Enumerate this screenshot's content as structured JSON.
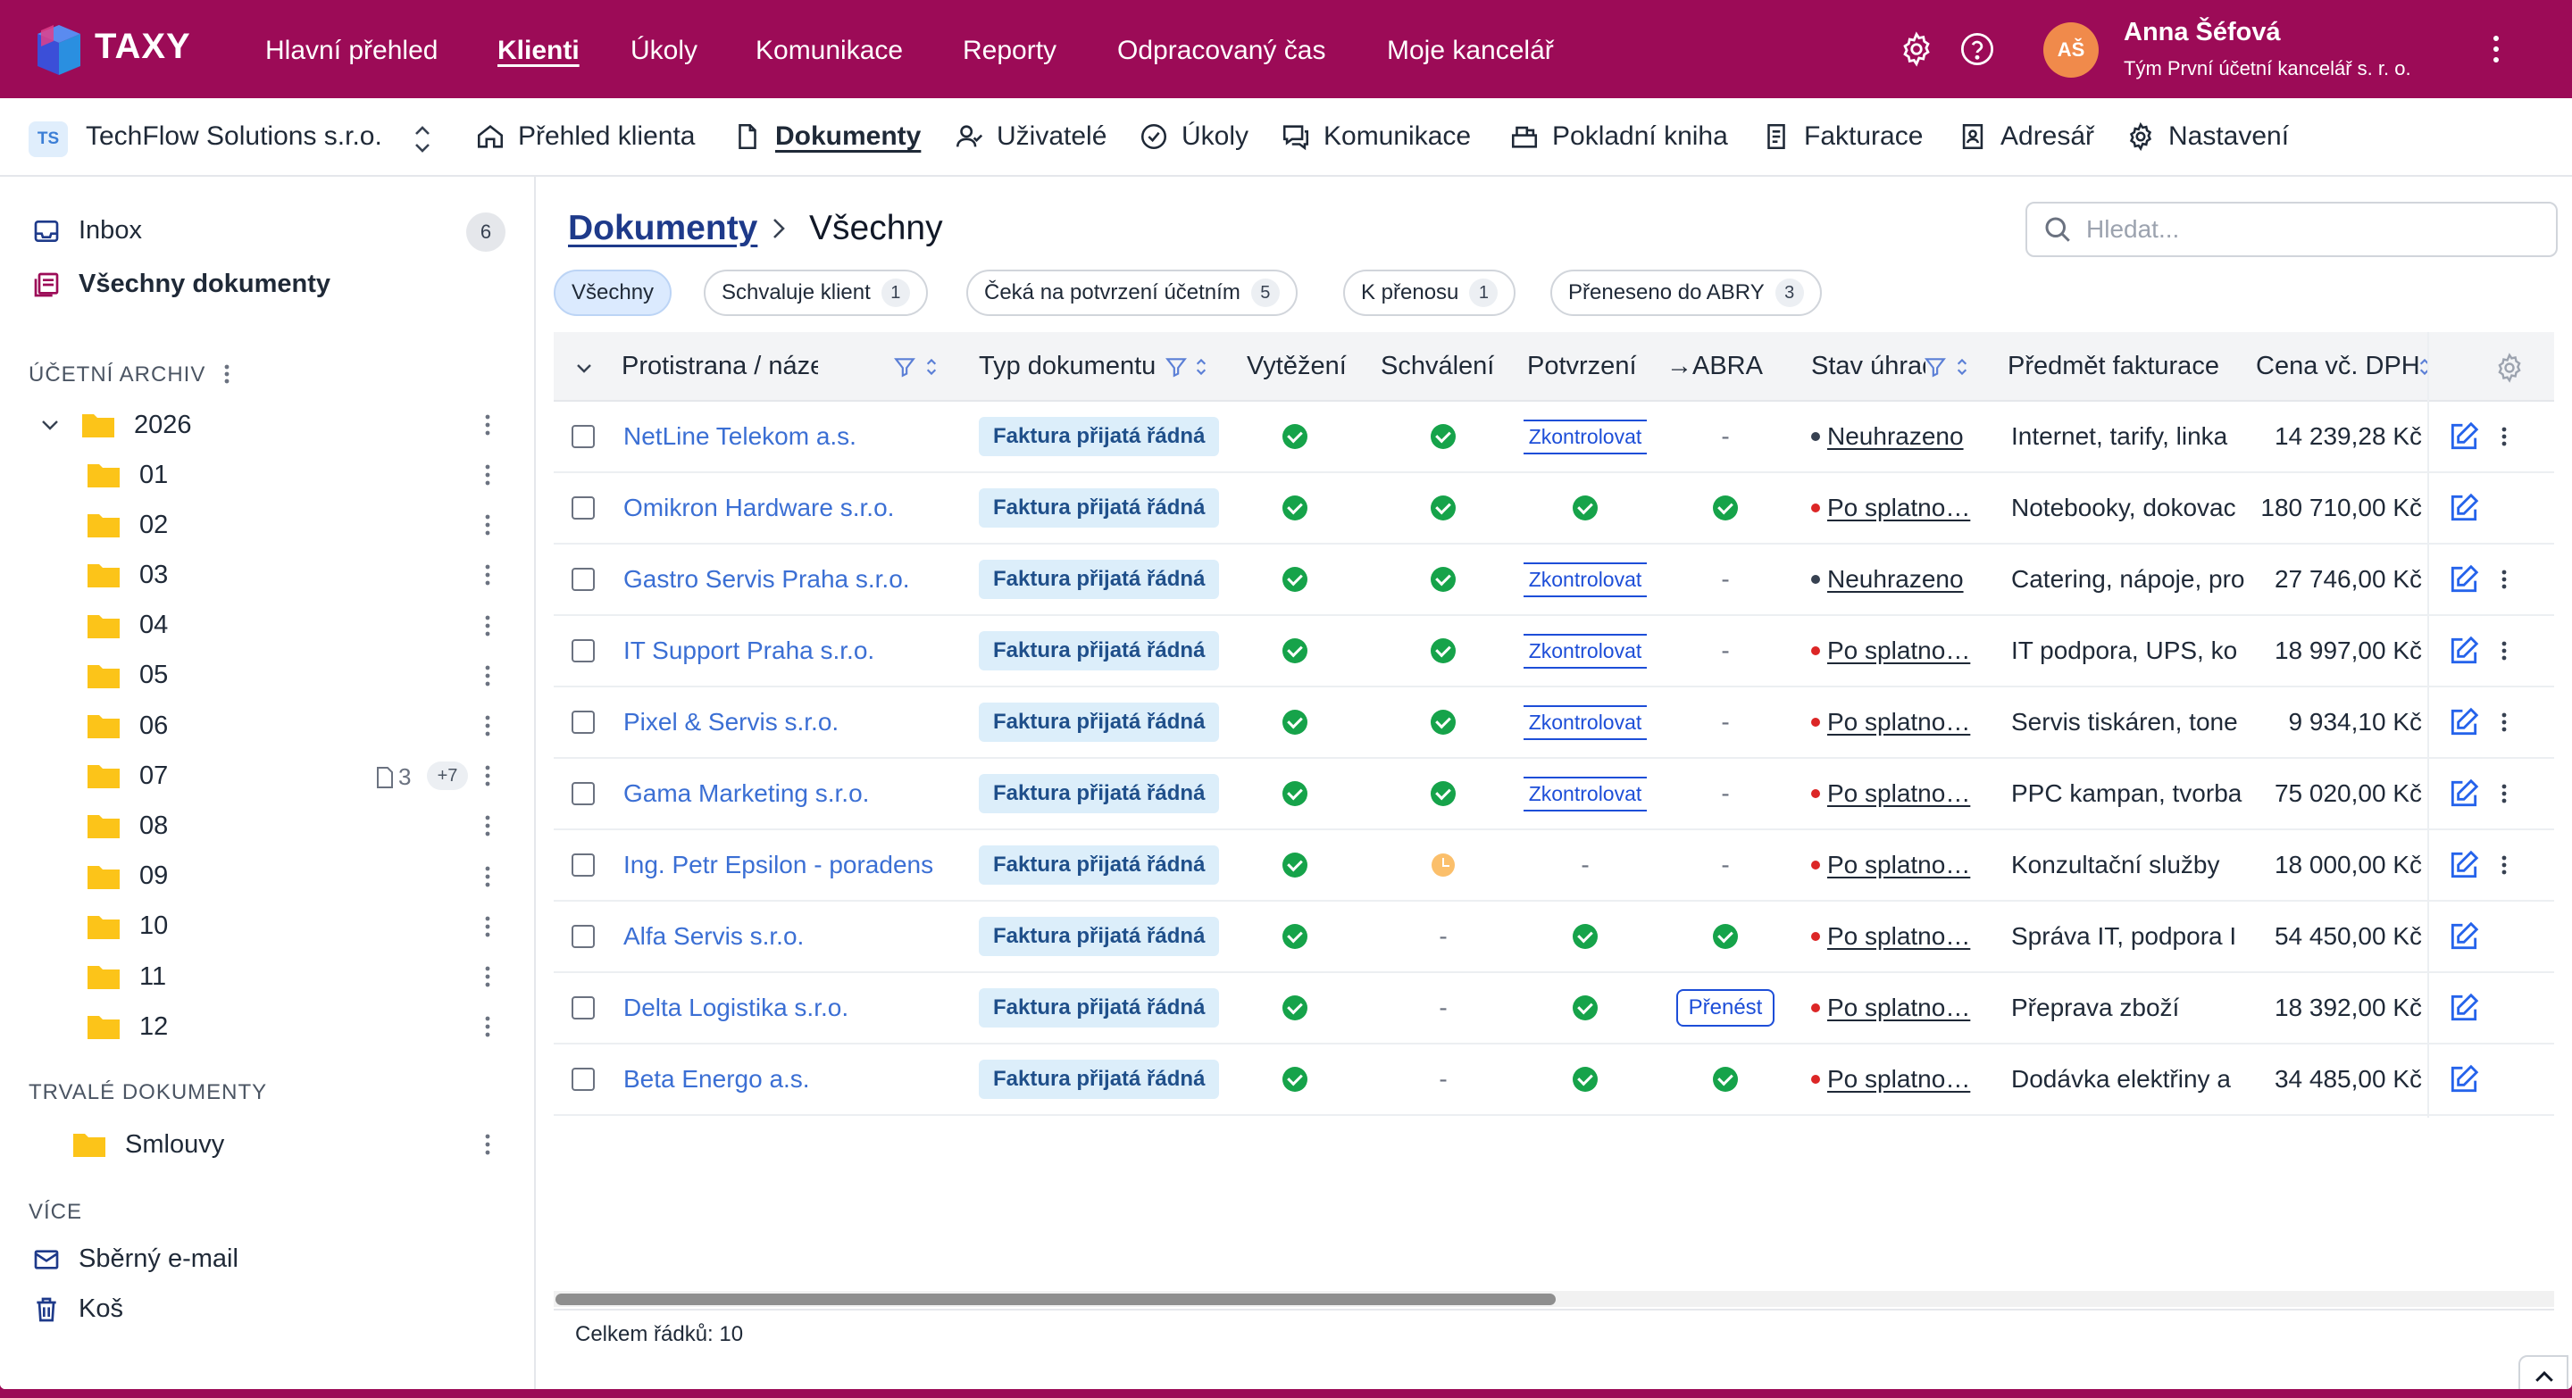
{
  "app": {
    "logo_text": "TAXY",
    "nav": [
      "Hlavní přehled",
      "Klienti",
      "Úkoly",
      "Komunikace",
      "Reporty",
      "Odpracovaný čas",
      "Moje kancelář"
    ],
    "active_nav": "Klienti",
    "user": {
      "initials": "AŠ",
      "name": "Anna Šéfová",
      "team": "Tým První účetní kancelář s. r. o."
    },
    "icons": [
      "settings-gear-icon",
      "help-icon",
      "more-vertical-icon"
    ]
  },
  "client": {
    "badge": "TS",
    "name": "TechFlow Solutions s.r.o.",
    "tabs": [
      "Přehled klienta",
      "Dokumenty",
      "Uživatelé",
      "Úkoly",
      "Komunikace",
      "Pokladní kniha",
      "Fakturace",
      "Adresář",
      "Nastavení"
    ],
    "active_tab": "Dokumenty"
  },
  "sidebar": {
    "inbox_label": "Inbox",
    "inbox_count": "6",
    "all_docs_label": "Všechny dokumenty",
    "archive_label": "ÚČETNÍ ARCHIV",
    "year": "2026",
    "months": [
      "01",
      "02",
      "03",
      "04",
      "05",
      "06",
      "07",
      "08",
      "09",
      "10",
      "11",
      "12"
    ],
    "month_07_docs": "3",
    "month_07_more": "+7",
    "permanent_label": "TRVALÉ DOKUMENTY",
    "contracts_label": "Smlouvy",
    "more_label": "VÍCE",
    "email_label": "Sběrný e-mail",
    "trash_label": "Koš"
  },
  "main": {
    "breadcrumb_root": "Dokumenty",
    "breadcrumb_current": "Všechny",
    "search_placeholder": "Hledat...",
    "filters": [
      {
        "label": "Všechny",
        "count": ""
      },
      {
        "label": "Schvaluje klient",
        "count": "1"
      },
      {
        "label": "Čeká na potvrzení účetním",
        "count": "5"
      },
      {
        "label": "K přenosu",
        "count": "1"
      },
      {
        "label": "Přeneseno do ABRY",
        "count": "3"
      }
    ],
    "active_filter": "Všechny",
    "columns": [
      "Protistrana / název",
      "Typ dokumentu",
      "Vytěžení",
      "Schválení",
      "Potvrzení",
      "→ABRA",
      "Stav úhrady",
      "Předmět fakturace",
      "Cena vč. DPH"
    ],
    "total_rows": "Celkem řádků: 10"
  },
  "rows": [
    {
      "party": "NetLine Telekom a.s.",
      "type": "Faktura přijatá řádná",
      "extract": "ok",
      "approve": "ok",
      "confirm": "Zkontrolovat",
      "abra": "-",
      "pay_status": "Neuhrazeno",
      "pay_color": "#374151",
      "subject": "Internet, tarify, linka",
      "price": "14 239,28 Kč",
      "more": true
    },
    {
      "party": "Omikron Hardware s.r.o.",
      "type": "Faktura přijatá řádná",
      "extract": "ok",
      "approve": "ok",
      "confirm": "ok",
      "abra": "ok",
      "pay_status": "Po splatno…",
      "pay_color": "#dc2626",
      "subject": "Notebooky, dokovac",
      "price": "180 710,00 Kč",
      "more": false
    },
    {
      "party": "Gastro Servis Praha s.r.o.",
      "type": "Faktura přijatá řádná",
      "extract": "ok",
      "approve": "ok",
      "confirm": "Zkontrolovat",
      "abra": "-",
      "pay_status": "Neuhrazeno",
      "pay_color": "#374151",
      "subject": "Catering, nápoje, pro",
      "price": "27 746,00 Kč",
      "more": true
    },
    {
      "party": "IT Support Praha s.r.o.",
      "type": "Faktura přijatá řádná",
      "extract": "ok",
      "approve": "ok",
      "confirm": "Zkontrolovat",
      "abra": "-",
      "pay_status": "Po splatno…",
      "pay_color": "#dc2626",
      "subject": "IT podpora, UPS, ko",
      "price": "18 997,00 Kč",
      "more": true
    },
    {
      "party": "Pixel & Servis s.r.o.",
      "type": "Faktura přijatá řádná",
      "extract": "ok",
      "approve": "ok",
      "confirm": "Zkontrolovat",
      "abra": "-",
      "pay_status": "Po splatno…",
      "pay_color": "#dc2626",
      "subject": "Servis tiskáren, tone",
      "price": "9 934,10 Kč",
      "more": true
    },
    {
      "party": "Gama Marketing s.r.o.",
      "type": "Faktura přijatá řádná",
      "extract": "ok",
      "approve": "ok",
      "confirm": "Zkontrolovat",
      "abra": "-",
      "pay_status": "Po splatno…",
      "pay_color": "#dc2626",
      "subject": "PPC kampan, tvorba",
      "price": "75 020,00 Kč",
      "more": true
    },
    {
      "party": "Ing. Petr Epsilon - poradens",
      "type": "Faktura přijatá řádná",
      "extract": "ok",
      "approve": "pending",
      "confirm": "-",
      "abra": "-",
      "pay_status": "Po splatno…",
      "pay_color": "#dc2626",
      "subject": "Konzultační služby",
      "price": "18 000,00 Kč",
      "more": true
    },
    {
      "party": "Alfa Servis s.r.o.",
      "type": "Faktura přijatá řádná",
      "extract": "ok",
      "approve": "-",
      "confirm": "ok",
      "abra": "ok",
      "pay_status": "Po splatno…",
      "pay_color": "#dc2626",
      "subject": "Správa IT, podpora I",
      "price": "54 450,00 Kč",
      "more": false
    },
    {
      "party": "Delta Logistika s.r.o.",
      "type": "Faktura přijatá řádná",
      "extract": "ok",
      "approve": "-",
      "confirm": "ok",
      "abra": "Přenést",
      "pay_status": "Po splatno…",
      "pay_color": "#dc2626",
      "subject": "Přeprava zboží",
      "price": "18 392,00 Kč",
      "more": false
    },
    {
      "party": "Beta Energo a.s.",
      "type": "Faktura přijatá řádná",
      "extract": "ok",
      "approve": "-",
      "confirm": "ok",
      "abra": "ok",
      "pay_status": "Po splatno…",
      "pay_color": "#dc2626",
      "subject": "Dodávka elektřiny a",
      "price": "34 485,00 Kč",
      "more": false
    }
  ],
  "colors": {
    "brand": "#9c0b57",
    "link": "#3b6fd4",
    "success": "#16a34a",
    "warning": "#fbbf6b",
    "overdue": "#dc2626"
  }
}
